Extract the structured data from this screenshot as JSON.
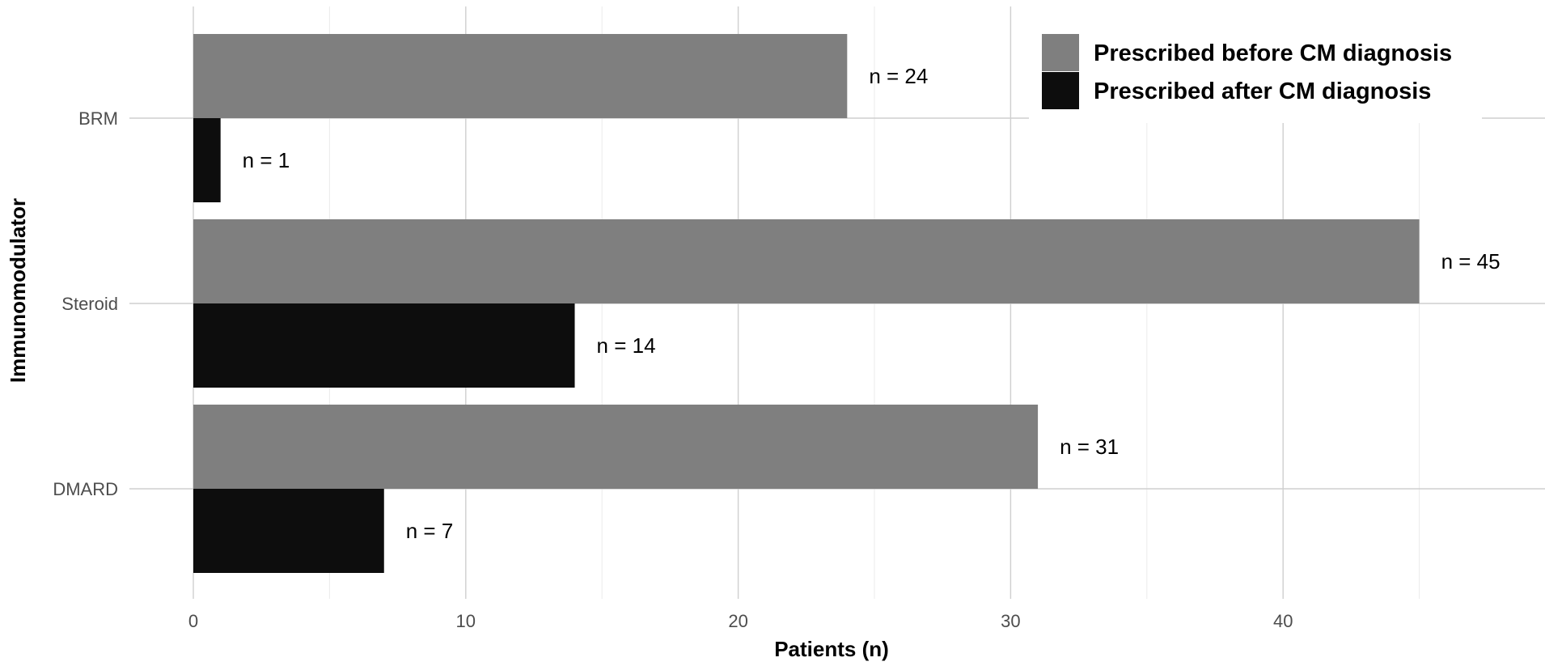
{
  "chart_data": {
    "type": "bar",
    "orientation": "horizontal",
    "categories": [
      "BRM",
      "Steroid",
      "DMARD"
    ],
    "series": [
      {
        "name": "Prescribed before CM diagnosis",
        "values": [
          24,
          45,
          31
        ],
        "labels": [
          "n = 24",
          "n = 45",
          "n = 31"
        ],
        "color": "#7f7f7f"
      },
      {
        "name": "Prescribed after CM diagnosis",
        "values": [
          1,
          14,
          7
        ],
        "labels": [
          "n = 1",
          "n = 14",
          "n = 7"
        ],
        "color": "#0d0d0d"
      }
    ],
    "xlabel": "Patients (n)",
    "ylabel": "Immunomodulator",
    "xlim": [
      0,
      49
    ],
    "xticks": [
      0,
      10,
      20,
      30,
      40
    ],
    "grid": true,
    "legend_position": "top-right"
  }
}
